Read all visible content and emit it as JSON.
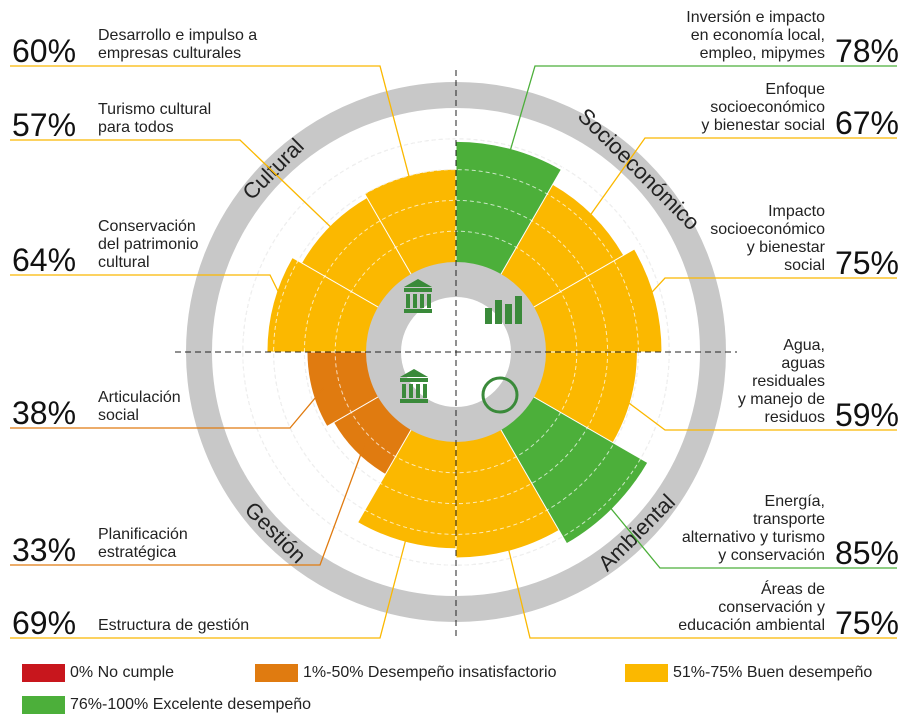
{
  "chart_data": {
    "type": "polar_bar",
    "groups": [
      "Socioeconómico",
      "Ambiental",
      "Gestión",
      "Cultural"
    ],
    "categories": [
      "Inversión e impacto\nen economía local,\nempleo, mipymes",
      "Enfoque\nsocioeconómico\ny bienestar social",
      "Impacto\nsocioeconómico\ny bienestar\nsocial",
      "Agua,\naguas\nresiduales\ny manejo de\nresiduos",
      "Energía,\ntransporte\nalternativo y turismo\ny conservación",
      "Áreas de\nconservación y\neducación ambiental",
      "Estructura de gestión",
      "Planificación\nestratégica",
      "Articulación\nsocial",
      "Conservación\ndel patrimonio\ncultural",
      "Turismo cultural\npara todos",
      "Desarrollo e impulso a\nempresas culturales"
    ],
    "values": [
      78,
      67,
      75,
      59,
      85,
      75,
      69,
      33,
      38,
      64,
      57,
      60
    ],
    "value_labels": [
      "78%",
      "67%",
      "75%",
      "59%",
      "85%",
      "75%",
      "69%",
      "33%",
      "38%",
      "64%",
      "57%",
      "60%"
    ],
    "colors": [
      "#4caf3a",
      "#fbb800",
      "#fbb800",
      "#fbb800",
      "#4caf3a",
      "#fbb800",
      "#fbb800",
      "#e07b10",
      "#e07b10",
      "#fbb800",
      "#fbb800",
      "#fbb800"
    ],
    "ylim": [
      0,
      100
    ],
    "legend": [
      {
        "name": "0% No cumple",
        "color": "#c8161d"
      },
      {
        "name": "1%-50% Desempeño insatisfactorio",
        "color": "#e07b10"
      },
      {
        "name": "51%-75% Buen desempeño",
        "color": "#fbb800"
      },
      {
        "name": "76%-100% Excelente desempeño",
        "color": "#4caf3a"
      }
    ]
  }
}
